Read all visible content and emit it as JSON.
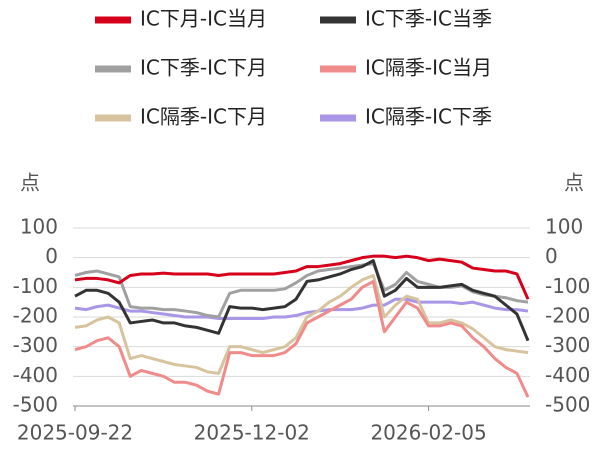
{
  "chart_data": {
    "type": "line",
    "y_label": "点",
    "y2_label": "点",
    "categories": [
      "2025-09-22",
      null,
      null,
      null,
      null,
      null,
      null,
      null,
      null,
      null,
      null,
      null,
      null,
      null,
      null,
      null,
      "2025-12-02",
      null,
      null,
      null,
      null,
      null,
      null,
      null,
      null,
      null,
      null,
      null,
      null,
      null,
      null,
      null,
      "2026-02-05",
      null,
      null,
      null,
      null,
      null,
      null,
      null,
      null,
      null
    ],
    "ylim": [
      -500,
      100
    ],
    "yticks": [
      100,
      0,
      -100,
      -200,
      -300,
      -400,
      -500
    ],
    "y2lim": [
      -500,
      100
    ],
    "y2ticks": [
      100,
      0,
      -100,
      -200,
      -300,
      -400,
      -500
    ],
    "grid": true,
    "series": [
      {
        "name": "IC下月-IC当月",
        "color": "#d7001b",
        "values": [
          -75,
          -70,
          -70,
          -75,
          -85,
          -60,
          -55,
          -55,
          -52,
          -55,
          -55,
          -55,
          -55,
          -60,
          -55,
          -55,
          -55,
          -55,
          -55,
          -50,
          -45,
          -30,
          -30,
          -25,
          -20,
          -10,
          0,
          5,
          5,
          0,
          5,
          0,
          -10,
          -5,
          -10,
          -15,
          -35,
          -40,
          -45,
          -45,
          -55,
          -140
        ]
      },
      {
        "name": "IC下季-IC当季",
        "color": "#333333",
        "values": [
          -130,
          -110,
          -110,
          -120,
          -150,
          -220,
          -215,
          -210,
          -220,
          -220,
          -230,
          -235,
          -245,
          -255,
          -165,
          -170,
          -170,
          -175,
          -170,
          -165,
          -140,
          -80,
          -75,
          -65,
          -55,
          -40,
          -30,
          -10,
          -130,
          -110,
          -70,
          -100,
          -100,
          -100,
          -95,
          -90,
          -110,
          -120,
          -130,
          -160,
          -190,
          -280
        ]
      },
      {
        "name": "IC下季-IC下月",
        "color": "#a0a0a0",
        "values": [
          -60,
          -50,
          -45,
          -55,
          -65,
          -165,
          -170,
          -170,
          -175,
          -175,
          -180,
          -185,
          -195,
          -200,
          -120,
          -110,
          -110,
          -110,
          -110,
          -105,
          -85,
          -60,
          -45,
          -40,
          -35,
          -30,
          -25,
          -20,
          -110,
          -90,
          -50,
          -80,
          -90,
          -100,
          -100,
          -95,
          -115,
          -125,
          -130,
          -135,
          -145,
          -150
        ]
      },
      {
        "name": "IC隔季-IC当月",
        "color": "#f08b8b",
        "values": [
          -310,
          -300,
          -280,
          -270,
          -300,
          -400,
          -380,
          -390,
          -400,
          -420,
          -420,
          -430,
          -450,
          -460,
          -320,
          -320,
          -330,
          -330,
          -330,
          -320,
          -290,
          -220,
          -200,
          -180,
          -160,
          -140,
          -100,
          -80,
          -250,
          -200,
          -150,
          -170,
          -230,
          -230,
          -220,
          -230,
          -270,
          -300,
          -340,
          -370,
          -390,
          -470
        ]
      },
      {
        "name": "IC隔季-IC下月",
        "color": "#d7c49e",
        "values": [
          -235,
          -230,
          -210,
          -200,
          -220,
          -340,
          -330,
          -340,
          -350,
          -360,
          -365,
          -370,
          -385,
          -390,
          -300,
          -300,
          -310,
          -320,
          -310,
          -300,
          -270,
          -200,
          -180,
          -150,
          -130,
          -100,
          -75,
          -60,
          -200,
          -160,
          -130,
          -140,
          -220,
          -220,
          -210,
          -220,
          -240,
          -270,
          -300,
          -310,
          -315,
          -320
        ]
      },
      {
        "name": "IC隔季-IC下季",
        "color": "#a996e6",
        "values": [
          -170,
          -175,
          -165,
          -160,
          -170,
          -180,
          -180,
          -185,
          -190,
          -195,
          -200,
          -200,
          -200,
          -205,
          -205,
          -205,
          -205,
          -205,
          -200,
          -200,
          -195,
          -185,
          -180,
          -175,
          -175,
          -175,
          -170,
          -160,
          -160,
          -140,
          -140,
          -150,
          -150,
          -150,
          -150,
          -155,
          -150,
          -160,
          -170,
          -175,
          -175,
          -180
        ]
      }
    ]
  }
}
